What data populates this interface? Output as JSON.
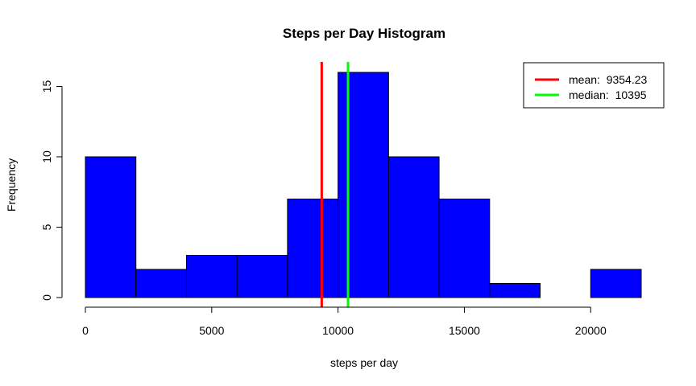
{
  "chart_data": {
    "type": "bar",
    "title": "Steps per Day Histogram",
    "xlabel": "steps per day",
    "ylabel": "Frequency",
    "bins": [
      {
        "start": 0,
        "end": 2000,
        "count": 10
      },
      {
        "start": 2000,
        "end": 4000,
        "count": 2
      },
      {
        "start": 4000,
        "end": 6000,
        "count": 3
      },
      {
        "start": 6000,
        "end": 8000,
        "count": 3
      },
      {
        "start": 8000,
        "end": 10000,
        "count": 7
      },
      {
        "start": 10000,
        "end": 12000,
        "count": 16
      },
      {
        "start": 12000,
        "end": 14000,
        "count": 10
      },
      {
        "start": 14000,
        "end": 16000,
        "count": 7
      },
      {
        "start": 16000,
        "end": 18000,
        "count": 1
      },
      {
        "start": 18000,
        "end": 20000,
        "count": 0
      },
      {
        "start": 20000,
        "end": 22000,
        "count": 2
      }
    ],
    "bar_color": "#0000FF",
    "xticks": [
      0,
      5000,
      10000,
      15000,
      20000
    ],
    "yticks": [
      0,
      5,
      10,
      15
    ],
    "xlim": [
      0,
      22000
    ],
    "ylim": [
      0,
      16
    ],
    "grid": false,
    "reference_lines": [
      {
        "label": "mean:  9354.23",
        "value": 9354.23,
        "color": "#FF0000"
      },
      {
        "label": "median:  10395",
        "value": 10395,
        "color": "#00FF00"
      }
    ],
    "legend_position": "top-right"
  }
}
